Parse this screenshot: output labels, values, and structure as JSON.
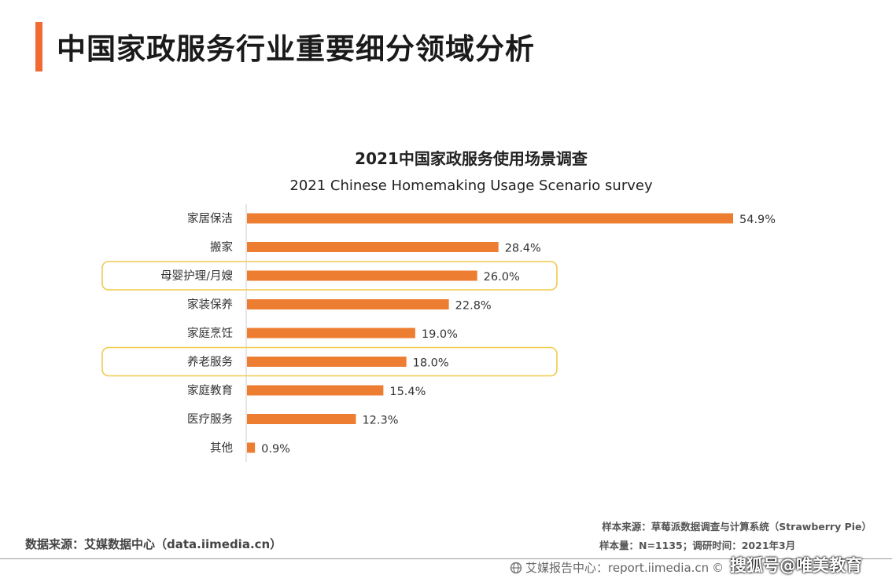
{
  "page": {
    "title": "中国家政服务行业重要细分领域分析",
    "accent_color": "#ef6b33"
  },
  "chart_data": {
    "type": "bar",
    "orientation": "horizontal",
    "title": "2021中国家政服务使用场景调查",
    "subtitle": "2021 Chinese Homemaking Usage Scenario survey",
    "categories": [
      "家居保洁",
      "搬家",
      "母婴护理/月嫂",
      "家装保养",
      "家庭烹饪",
      "养老服务",
      "家庭教育",
      "医疗服务",
      "其他"
    ],
    "values": [
      54.9,
      28.4,
      26.0,
      22.8,
      19.0,
      18.0,
      15.4,
      12.3,
      0.9
    ],
    "value_labels": [
      "54.9%",
      "28.4%",
      "26.0%",
      "22.8%",
      "19.0%",
      "18.0%",
      "15.4%",
      "12.3%",
      "0.9%"
    ],
    "bar_color": "#ed7d31",
    "highlighted": [
      "母婴护理/月嫂",
      "养老服务"
    ],
    "highlight_color": "#f2c94c",
    "xlim": [
      0,
      55
    ],
    "grid": false,
    "legend": "none"
  },
  "footer": {
    "source": "数据来源：艾媒数据中心（data.iimedia.cn）",
    "sample_source": "样本来源：草莓派数据调查与计算系统（Strawberry Pie）",
    "sample_size": "样本量：N=1135；调研时间：2021年3月",
    "report_site": "艾媒报告中心：report.iimedia.cn",
    "copyright": "©",
    "watermark": "搜狐号@唯美教育"
  }
}
